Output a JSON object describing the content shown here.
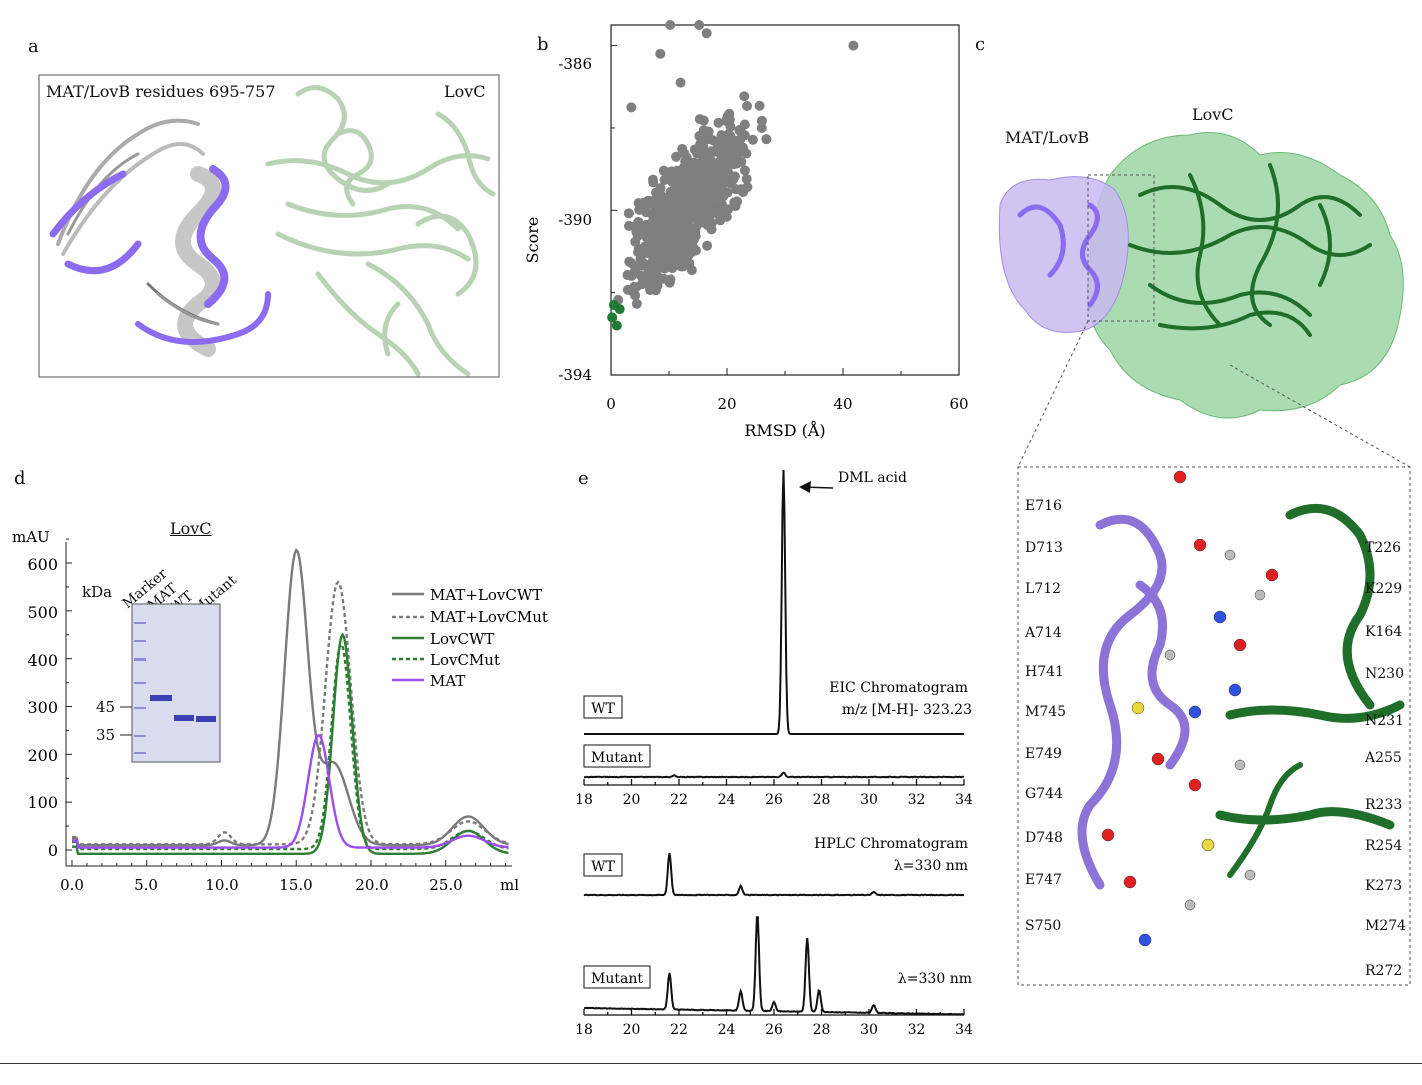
{
  "panels": {
    "a": {
      "letter": "a",
      "label_left": "MAT/LovB residues 695-757",
      "label_right": "LovC"
    },
    "b": {
      "letter": "b",
      "xlabel": "RMSD (Å)",
      "ylabel": "Score",
      "x_ticks": [
        "0",
        "20",
        "40",
        "60"
      ],
      "y_ticks": [
        "-386",
        "-390",
        "-394"
      ]
    },
    "c": {
      "letter": "c",
      "label_mat": "MAT/LovB",
      "label_lovc": "LovC",
      "residues_left": [
        "E716",
        "D713",
        "L712",
        "A714",
        "H741",
        "M745",
        "E749",
        "G744",
        "D748",
        "E747",
        "S750"
      ],
      "residues_right": [
        "T226",
        "K229",
        "K164",
        "N230",
        "N231",
        "A255",
        "R233",
        "R254",
        "K273",
        "M274",
        "R272"
      ]
    },
    "d": {
      "letter": "d",
      "ylabel": "mAU",
      "xunit": "ml",
      "x_ticks": [
        "0.0",
        "5.0",
        "10.0",
        "15.0",
        "20.0",
        "25.0"
      ],
      "y_ticks": [
        "0",
        "100",
        "200",
        "300",
        "400",
        "500",
        "600"
      ],
      "gel": {
        "title": "LovC",
        "kda": "kDa",
        "lanes": [
          "Marker",
          "MAT",
          "WT",
          "Mutant"
        ],
        "markers": [
          "45",
          "35"
        ]
      },
      "legend": [
        "MAT+LovCWT",
        "MAT+LovCMut",
        "LovCWT",
        "LovCMut",
        "MAT"
      ]
    },
    "e": {
      "letter": "e",
      "peak_label": "DML acid",
      "eic_title": "EIC Chromatogram",
      "eic_sub": "m/z [M-H]- 323.23",
      "hplc_title": "HPLC Chromatogram",
      "hplc_sub": "λ=330 nm",
      "hplc_sub2": "λ=330 nm",
      "wt": "WT",
      "mutant": "Mutant",
      "x_ticks": [
        "18",
        "20",
        "22",
        "24",
        "26",
        "28",
        "30",
        "32",
        "34"
      ]
    }
  },
  "chart_data": [
    {
      "type": "scatter",
      "xlabel": "RMSD (Å)",
      "ylabel": "Score",
      "xlim": [
        0,
        60
      ],
      "ylim": [
        -394,
        -385.5
      ],
      "series": [
        {
          "values": [
            [
              41.8,
              -386.0
            ],
            [
              16.5,
              -385.7
            ],
            [
              15.2,
              -385.5
            ],
            [
              10.2,
              -385.5
            ],
            [
              8.5,
              -386.2
            ],
            [
              12.0,
              -386.9
            ],
            [
              3.5,
              -387.5
            ],
            [
              26.0,
              -388.0
            ]
          ]
        },
        {
          "values": [
            [
              0.2,
              -392.6
            ],
            [
              1.0,
              -392.8
            ],
            [
              1.5,
              -392.4
            ],
            [
              0.5,
              -392.3
            ]
          ]
        }
      ]
    },
    {
      "type": "line",
      "xlabel": "ml",
      "ylabel": "mAU",
      "xlim": [
        0,
        31
      ],
      "ylim": [
        -20,
        650
      ],
      "series": [
        {
          "name": "MAT+LovCWT",
          "peaks": [
            [
              15.0,
              620
            ],
            [
              17.5,
              180
            ],
            [
              26.5,
              70
            ]
          ]
        },
        {
          "name": "MAT+LovCMut",
          "peaks": [
            [
              17.8,
              560
            ],
            [
              26.5,
              60
            ]
          ]
        },
        {
          "name": "LovCWT",
          "peaks": [
            [
              18.1,
              450
            ],
            [
              26.5,
              40
            ]
          ]
        },
        {
          "name": "LovCMut",
          "peaks": [
            [
              18.0,
              430
            ],
            [
              26.5,
              40
            ]
          ]
        },
        {
          "name": "MAT",
          "peaks": [
            [
              16.5,
              240
            ],
            [
              26.5,
              30
            ]
          ]
        }
      ]
    },
    {
      "type": "line",
      "xlabel": "",
      "xlim": [
        18,
        34
      ],
      "series": [
        {
          "name": "EIC WT",
          "peaks": [
            [
              26.4,
              1.0
            ]
          ]
        },
        {
          "name": "EIC Mutant",
          "peaks": [
            [
              26.4,
              0.03
            ],
            [
              21.8,
              0.01
            ]
          ]
        },
        {
          "name": "HPLC WT",
          "peaks": [
            [
              21.6,
              0.28
            ],
            [
              24.6,
              0.06
            ],
            [
              30.2,
              0.02
            ]
          ]
        },
        {
          "name": "HPLC Mutant",
          "peaks": [
            [
              21.6,
              0.28
            ],
            [
              24.6,
              0.15
            ],
            [
              25.3,
              0.75
            ],
            [
              26.0,
              0.07
            ],
            [
              27.4,
              0.57
            ],
            [
              27.9,
              0.17
            ],
            [
              30.2,
              0.06
            ]
          ]
        }
      ]
    }
  ]
}
